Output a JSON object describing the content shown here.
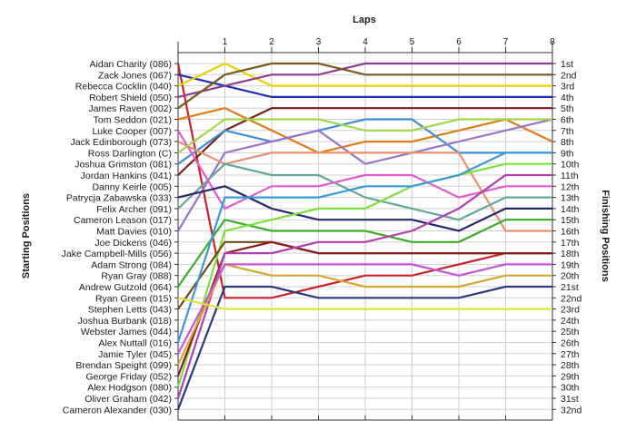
{
  "chart_data": {
    "type": "line",
    "top_axis_label": "Laps",
    "left_axis_label": "Starting Positions",
    "right_axis_label": "Finishing Positions",
    "x": [
      0,
      1,
      2,
      3,
      4,
      5,
      6,
      7,
      8
    ],
    "x_tick_labels": [
      "1",
      "2",
      "3",
      "4",
      "5",
      "6",
      "7",
      "8"
    ],
    "xlim": [
      0,
      8
    ],
    "ylim": [
      1,
      32
    ],
    "grid": true,
    "start_labels": [
      "Aidan Charity (086)",
      "Zack Jones (067)",
      "Rebecca Cocklin (040)",
      "Robert Shield (050)",
      "James Raven (002)",
      "Tom Seddon (021)",
      "Luke Cooper (007)",
      "Jack Edinborough (073)",
      "Ross Darlington (C)",
      "Joshua Grimston (081)",
      "Jordan Hankins (041)",
      "Danny Keirle (005)",
      "Patrycja Zabawska (033)",
      "Felix Archer (091)",
      "Cameron Leason (017)",
      "Matt Davies (010)",
      "Joe Dickens (046)",
      "Jake Campbell-Mills (056)",
      "Adam Strong (084)",
      "Ryan Gray (088)",
      "Andrew Gutzold (064)",
      "Ryan Green (015)",
      "Stephen Letts (043)",
      "Joshua Burbank (018)",
      "Webster James (044)",
      "Alex Nuttall (016)",
      "Jamie Tyler (045)",
      "Brendan Speight (099)",
      "George Friday (052)",
      "Alex Hodgson (080)",
      "Oliver Graham (042)",
      "Cameron Alexander (030)"
    ],
    "finish_labels": [
      "1st",
      "2nd",
      "3rd",
      "4th",
      "5th",
      "6th",
      "7th",
      "8th",
      "9th",
      "10th",
      "11th",
      "12th",
      "13th",
      "14th",
      "15th",
      "16th",
      "17th",
      "18th",
      "19th",
      "20th",
      "21st",
      "22nd",
      "23rd",
      "24th",
      "25th",
      "26th",
      "27th",
      "28th",
      "29th",
      "30th",
      "31st",
      "32nd"
    ],
    "series": [
      {
        "color": "#c8232c",
        "values": [
          1,
          22,
          22,
          21,
          20,
          20,
          19,
          18,
          18
        ]
      },
      {
        "color": "#1f2fb4",
        "values": [
          2,
          3,
          4,
          4,
          4,
          4,
          4,
          4,
          4
        ]
      },
      {
        "color": "#e6d200",
        "values": [
          3,
          1,
          3,
          3,
          3,
          3,
          3,
          3,
          3
        ]
      },
      {
        "color": "#8e3c8e",
        "values": [
          4,
          3,
          2,
          2,
          1,
          1,
          1,
          1,
          1
        ]
      },
      {
        "color": "#e07b18",
        "values": [
          6,
          5,
          7,
          9,
          8,
          8,
          7,
          6,
          8
        ]
      },
      {
        "color": "#7b1e1e",
        "values": [
          11,
          7,
          5,
          5,
          5,
          5,
          5,
          5,
          5
        ]
      },
      {
        "color": "#3f8fd6",
        "values": [
          10,
          7,
          8,
          7,
          6,
          6,
          9,
          9,
          9
        ]
      },
      {
        "color": "#9b73c8",
        "values": [
          16,
          9,
          8,
          7,
          10,
          9,
          8,
          7,
          6
        ]
      },
      {
        "color": "#e89070",
        "values": [
          8,
          10,
          9,
          9,
          9,
          9,
          9,
          16,
          16
        ]
      },
      {
        "color": "#62a89a",
        "values": [
          14,
          10,
          11,
          11,
          13,
          14,
          15,
          13,
          13
        ]
      },
      {
        "color": "#e25ad0",
        "values": [
          7,
          14,
          12,
          12,
          11,
          11,
          13,
          12,
          12
        ]
      },
      {
        "color": "#27286b",
        "values": [
          13,
          12,
          14,
          15,
          15,
          15,
          16,
          14,
          14
        ]
      },
      {
        "color": "#3daa2a",
        "values": [
          21,
          15,
          16,
          16,
          16,
          17,
          17,
          15,
          15
        ]
      },
      {
        "color": "#7be03c",
        "values": [
          30,
          16,
          15,
          14,
          14,
          12,
          11,
          10,
          10
        ]
      },
      {
        "color": "#6b4a18",
        "values": [
          23,
          17,
          17,
          18,
          18,
          18,
          18,
          18,
          18
        ]
      },
      {
        "color": "#8c1d1d",
        "values": [
          29,
          18,
          17,
          18,
          18,
          18,
          18,
          18,
          18
        ]
      },
      {
        "color": "#b040b0",
        "values": [
          31,
          18,
          18,
          17,
          17,
          16,
          14,
          11,
          11
        ]
      },
      {
        "color": "#d4a830",
        "values": [
          28,
          19,
          20,
          20,
          21,
          21,
          21,
          20,
          20
        ]
      },
      {
        "color": "#c855d8",
        "values": [
          27,
          19,
          19,
          19,
          19,
          19,
          20,
          19,
          19
        ]
      },
      {
        "color": "#2a3a7a",
        "values": [
          32,
          21,
          21,
          22,
          22,
          22,
          22,
          21,
          21
        ]
      },
      {
        "color": "#9fd84a",
        "values": [
          9,
          6,
          6,
          6,
          7,
          7,
          6,
          6,
          6
        ]
      },
      {
        "color": "#3a9ad8",
        "values": [
          26,
          13,
          13,
          13,
          12,
          12,
          11,
          9,
          9
        ]
      },
      {
        "color": "#7a5a20",
        "values": [
          5,
          2,
          1,
          1,
          2,
          2,
          2,
          2,
          2
        ]
      },
      {
        "color": "#e0e040",
        "values": [
          22,
          23,
          23,
          23,
          23,
          23,
          23,
          23,
          23
        ]
      }
    ]
  }
}
